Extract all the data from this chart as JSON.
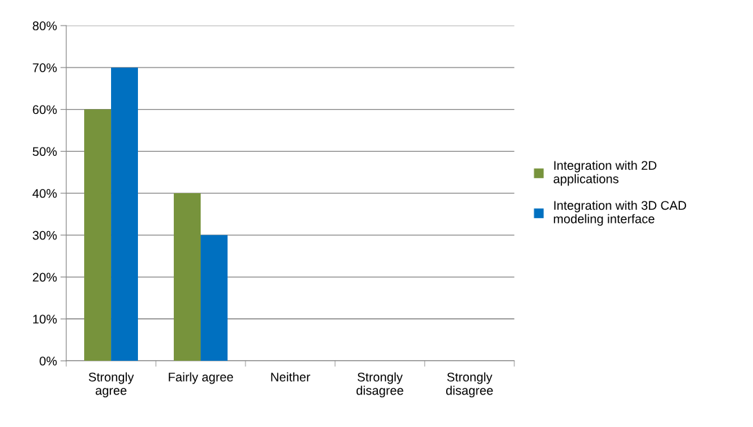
{
  "chart_data": {
    "type": "bar",
    "categories": [
      "Strongly\nagree",
      "Fairly agree",
      "Neither",
      "Strongly\ndisagree",
      "Strongly\ndisagree"
    ],
    "series": [
      {
        "name": "Integration with 2D\napplications",
        "color": "#77933c",
        "values": [
          60,
          40,
          0,
          0,
          0
        ]
      },
      {
        "name": "Integration with 3D CAD\nmodeling interface",
        "color": "#0070c0",
        "values": [
          70,
          30,
          0,
          0,
          0
        ]
      }
    ],
    "ylim": [
      0,
      80
    ],
    "yticks": [
      {
        "value": 0,
        "label": "0%"
      },
      {
        "value": 10,
        "label": "10%"
      },
      {
        "value": 20,
        "label": "20%"
      },
      {
        "value": 30,
        "label": "30%"
      },
      {
        "value": 40,
        "label": "40%"
      },
      {
        "value": 50,
        "label": "50%"
      },
      {
        "value": 60,
        "label": "60%"
      },
      {
        "value": 70,
        "label": "70%"
      },
      {
        "value": 80,
        "label": "80%"
      }
    ],
    "grid": "y",
    "legend": "right"
  }
}
